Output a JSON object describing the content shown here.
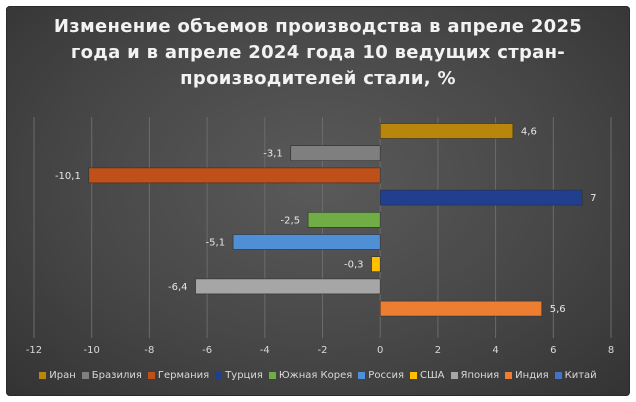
{
  "chart_data": {
    "type": "bar",
    "orientation": "horizontal",
    "title": "Изменение объемов производства в апреле 2025 года и в апреле 2024 года 10 ведущих стран-производителей стали, %",
    "categories": [
      "Иран",
      "Бразилия",
      "Германия",
      "Турция",
      "Южная Корея",
      "Россия",
      "США",
      "Япония",
      "Индия",
      "Китай"
    ],
    "values": [
      4.6,
      -3.1,
      -10.1,
      7,
      -2.5,
      -5.1,
      -0.3,
      -6.4,
      5.6,
      null
    ],
    "data_labels": [
      "4,6",
      "-3,1",
      "-10,1",
      "7",
      "-2,5",
      "-5,1",
      "-0,3",
      "-6,4",
      "5,6",
      ""
    ],
    "colors": [
      "#b8860b",
      "#7f7f7f",
      "#c0501a",
      "#203f8f",
      "#70ad47",
      "#4e8fd6",
      "#ffc000",
      "#a6a6a6",
      "#ed7d31",
      "#4472c4"
    ],
    "xlim": [
      -12,
      8
    ],
    "xticks": [
      "-12",
      "-10",
      "-8",
      "-6",
      "-4",
      "-2",
      "0",
      "2",
      "4",
      "6",
      "8"
    ],
    "xtick_values": [
      -12,
      -10,
      -8,
      -6,
      -4,
      -2,
      0,
      2,
      4,
      6,
      8
    ],
    "grid": "vertical",
    "legend_position": "bottom"
  }
}
